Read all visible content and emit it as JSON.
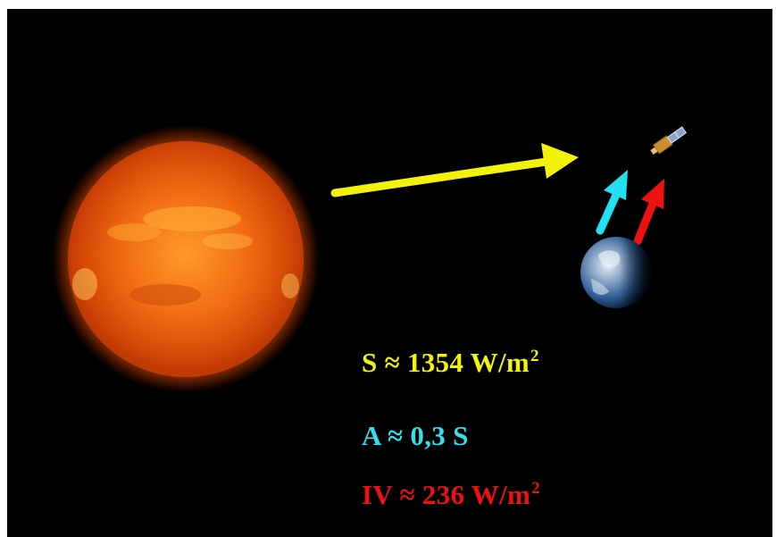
{
  "equations": {
    "solar_constant": {
      "text": "S ≈ 1354 W/m",
      "superscript": "2",
      "color": "#f2f20a"
    },
    "albedo": {
      "text": "A ≈ 0,3 S",
      "color": "#33e0ec"
    },
    "infrared": {
      "text": "IV ≈ 236 W/m",
      "superscript": "2",
      "color": "#ee1111"
    }
  },
  "arrows": {
    "solar": {
      "color": "#f2f20a"
    },
    "reflected": {
      "color": "#22e0f0"
    },
    "infrared": {
      "color": "#ee1111"
    }
  },
  "scene": {
    "background_color": "#000000",
    "objects": [
      "sun",
      "earth",
      "satellite"
    ]
  }
}
